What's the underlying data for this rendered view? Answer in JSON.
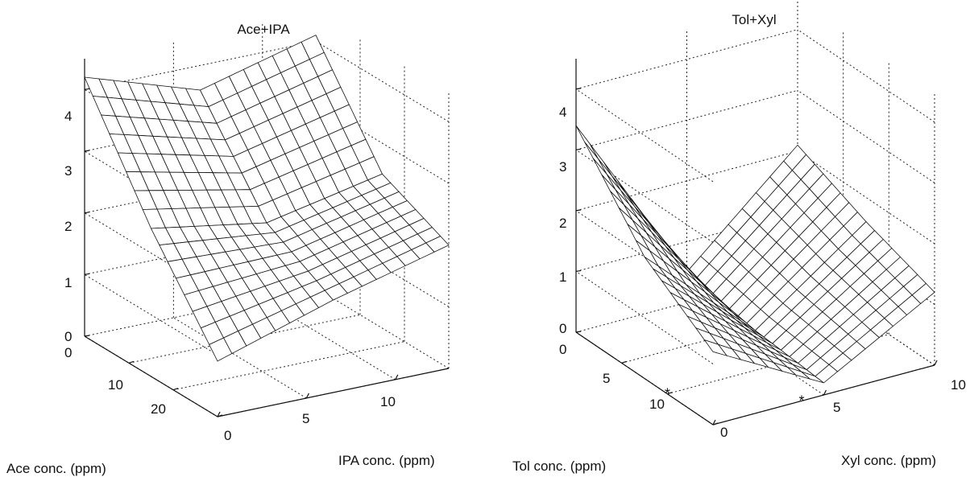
{
  "chart_data": [
    {
      "type": "surface",
      "title": "Ace+IPA",
      "xlabel": "IPA conc. (ppm)",
      "ylabel": "Ace conc. (ppm)",
      "zlabel": "",
      "xlim": [
        0,
        13
      ],
      "ylim": [
        0,
        30
      ],
      "zlim": [
        0,
        4.5
      ],
      "x_ticks": [
        "0",
        "5",
        "10"
      ],
      "y_ticks": [
        "0",
        "10",
        "20"
      ],
      "z_ticks": [
        "0",
        "1",
        "2",
        "3",
        "4"
      ],
      "grid": true,
      "surface_mesh": {
        "x": [
          0,
          6.5,
          13
        ],
        "y": [
          0,
          15,
          28
        ],
        "z": [
          [
            4.2,
            3.6,
            4.1
          ],
          [
            2.4,
            2.1,
            2.5
          ],
          [
            0.9,
            1.5,
            2.0
          ]
        ]
      }
    },
    {
      "type": "surface",
      "title": "Tol+Xyl",
      "xlabel": "Xyl conc. (ppm)",
      "ylabel": "Tol conc. (ppm)",
      "zlabel": "",
      "xlim": [
        0,
        10
      ],
      "ylim": [
        0,
        15
      ],
      "zlim": [
        0,
        4.5
      ],
      "x_ticks": [
        "0",
        "5",
        "10"
      ],
      "y_ticks": [
        "0",
        "5",
        "10"
      ],
      "z_ticks": [
        "0",
        "1",
        "2",
        "3",
        "4"
      ],
      "grid": true,
      "markers": [
        {
          "axis": "y",
          "value": 5,
          "symbol": "*"
        },
        {
          "axis": "x",
          "value": 4,
          "symbol": "*"
        }
      ],
      "surface_mesh": {
        "x": [
          0,
          4,
          10
        ],
        "y": [
          0,
          5,
          14
        ],
        "z": [
          [
            3.4,
            0.5,
            2.1
          ],
          [
            2.0,
            0.3,
            1.6
          ],
          [
            1.2,
            0.2,
            1.2
          ]
        ]
      }
    }
  ]
}
